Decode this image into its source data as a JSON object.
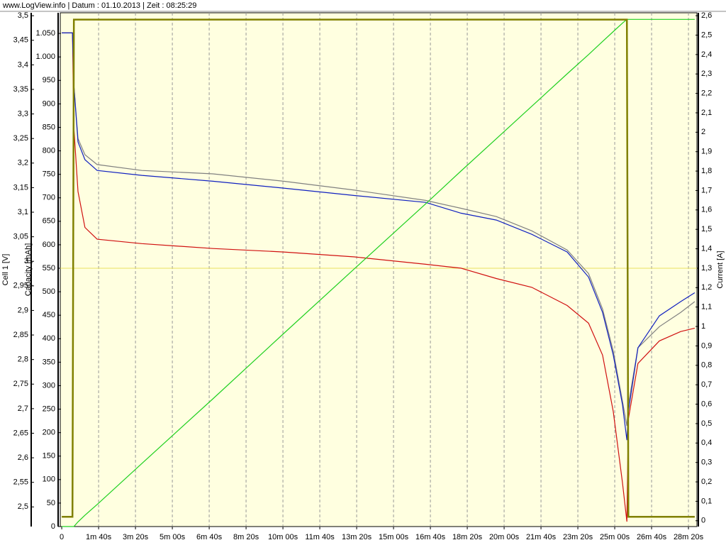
{
  "chart_data": {
    "type": "line",
    "title": "www.LogView.info   |   Datum : 01.10.2013   |   Zeit : 08:25:29",
    "ylabel": "Cell 1 [V]",
    "y3label": "Capacity [mAh]",
    "y2label": "Current [A]",
    "x": [
      0,
      29,
      33,
      44,
      63,
      96,
      217,
      410,
      602,
      794,
      987,
      1083,
      1179,
      1275,
      1371,
      1429,
      1467,
      1496,
      1521,
      1533,
      1537,
      1563,
      1621,
      1679,
      1717
    ],
    "series": [
      {
        "name": "Cell 1 [V]",
        "color": "#d01010",
        "axis": "y",
        "values": [
          3.465,
          3.465,
          3.272,
          3.142,
          3.069,
          3.045,
          3.036,
          3.026,
          3.019,
          3.009,
          2.994,
          2.986,
          2.965,
          2.947,
          2.91,
          2.874,
          2.809,
          2.694,
          2.549,
          2.47,
          2.679,
          2.792,
          2.838,
          2.857,
          2.864
        ]
      },
      {
        "color": "#808080",
        "axis": "y",
        "values": [
          3.465,
          3.465,
          3.358,
          3.25,
          3.217,
          3.197,
          3.185,
          3.178,
          3.163,
          3.145,
          3.124,
          3.108,
          3.091,
          3.062,
          3.023,
          2.975,
          2.903,
          2.817,
          2.715,
          2.665,
          2.708,
          2.824,
          2.867,
          2.896,
          2.918
        ]
      },
      {
        "color": "#1020c0",
        "axis": "y",
        "values": [
          3.465,
          3.465,
          3.358,
          3.243,
          3.207,
          3.185,
          3.175,
          3.163,
          3.149,
          3.134,
          3.12,
          3.098,
          3.084,
          3.055,
          3.019,
          2.968,
          2.896,
          2.809,
          2.708,
          2.636,
          2.694,
          2.824,
          2.889,
          2.918,
          2.936
        ]
      },
      {
        "name": "Capacity [mAh]",
        "color": "#20d020",
        "axis": "y3",
        "values": [
          0,
          0,
          0,
          10,
          24,
          47,
          134,
          272,
          411,
          549,
          687,
          757,
          826,
          895,
          964,
          1005,
          1033,
          1054,
          1072,
          1080,
          1080,
          1080,
          1080,
          1080,
          1080
        ]
      },
      {
        "name": "Current [A]",
        "color": "#808000",
        "axis": "y2",
        "values": [
          0.02,
          0.02,
          2.58,
          2.58,
          2.58,
          2.58,
          2.58,
          2.58,
          2.58,
          2.58,
          2.58,
          2.58,
          2.58,
          2.58,
          2.58,
          2.58,
          2.58,
          2.58,
          2.58,
          2.58,
          0.02,
          0.02,
          0.02,
          0.02,
          0.02
        ]
      }
    ],
    "reference_line": {
      "value": 1.3,
      "axis": "y2",
      "color": "#e8e060"
    },
    "xlim": [
      -4,
      1723
    ],
    "xticks": [
      0,
      {
        "value": 100,
        "label": "1m 40s"
      },
      {
        "value": 200,
        "label": "3m 20s"
      },
      {
        "value": 300,
        "label": "5m 00s"
      },
      {
        "value": 400,
        "label": "6m 40s"
      },
      {
        "value": 500,
        "label": "8m 20s"
      },
      {
        "value": 600,
        "label": "10m 00s"
      },
      {
        "value": 700,
        "label": "11m 40s"
      },
      {
        "value": 800,
        "label": "13m 20s"
      },
      {
        "value": 900,
        "label": "15m 00s"
      },
      {
        "value": 1000,
        "label": "16m 40s"
      },
      {
        "value": 1100,
        "label": "18m 20s"
      },
      {
        "value": 1200,
        "label": "20m 00s"
      },
      {
        "value": 1300,
        "label": "21m 40s"
      },
      {
        "value": 1400,
        "label": "23m 20s"
      },
      {
        "value": 1500,
        "label": "25m 00s"
      },
      {
        "value": 1600,
        "label": "26m 40s"
      },
      {
        "value": 1700,
        "label": "28m 20s"
      }
    ],
    "ylim": [
      2.46,
      3.506
    ],
    "yticks": [
      {
        "value": 2.5,
        "label": "2,5"
      },
      {
        "value": 2.55,
        "label": "2,55"
      },
      {
        "value": 2.6,
        "label": "2,6"
      },
      {
        "value": 2.65,
        "label": "2,65"
      },
      {
        "value": 2.7,
        "label": "2,7"
      },
      {
        "value": 2.75,
        "label": "2,75"
      },
      {
        "value": 2.8,
        "label": "2,8"
      },
      {
        "value": 2.85,
        "label": "2,85"
      },
      {
        "value": 2.9,
        "label": "2,9"
      },
      {
        "value": 2.95,
        "label": "2,95"
      },
      3,
      {
        "value": 3.05,
        "label": "3,05"
      },
      {
        "value": 3.1,
        "label": "3,1"
      },
      {
        "value": 3.15,
        "label": "3,15"
      },
      {
        "value": 3.2,
        "label": "3,2"
      },
      {
        "value": 3.25,
        "label": "3,25"
      },
      {
        "value": 3.3,
        "label": "3,3"
      },
      {
        "value": 3.35,
        "label": "3,35"
      },
      {
        "value": 3.4,
        "label": "3,4"
      },
      {
        "value": 3.45,
        "label": "3,45"
      },
      {
        "value": 3.5,
        "label": "3,5"
      }
    ],
    "y3lim": [
      0,
      1094
    ],
    "y3ticks": [
      0,
      50,
      100,
      150,
      200,
      250,
      300,
      350,
      400,
      450,
      500,
      550,
      600,
      650,
      700,
      750,
      800,
      850,
      900,
      950,
      {
        "value": 1000,
        "label": "1.000"
      },
      {
        "value": 1050,
        "label": "1.050"
      }
    ],
    "y2lim": [
      -0.03,
      2.615
    ],
    "y2ticks": [
      0,
      {
        "value": 0.1,
        "label": "0,1"
      },
      {
        "value": 0.2,
        "label": "0,2"
      },
      {
        "value": 0.3,
        "label": "0,3"
      },
      {
        "value": 0.4,
        "label": "0,4"
      },
      {
        "value": 0.5,
        "label": "0,5"
      },
      {
        "value": 0.6,
        "label": "0,6"
      },
      {
        "value": 0.7,
        "label": "0,7"
      },
      {
        "value": 0.8,
        "label": "0,8"
      },
      {
        "value": 0.9,
        "label": "0,9"
      },
      1,
      {
        "value": 1.1,
        "label": "1,1"
      },
      {
        "value": 1.2,
        "label": "1,2"
      },
      {
        "value": 1.3,
        "label": "1,3"
      },
      {
        "value": 1.4,
        "label": "1,4"
      },
      {
        "value": 1.5,
        "label": "1,5"
      },
      {
        "value": 1.6,
        "label": "1,6"
      },
      {
        "value": 1.7,
        "label": "1,7"
      },
      {
        "value": 1.8,
        "label": "1,8"
      },
      {
        "value": 1.9,
        "label": "1,9"
      },
      2,
      {
        "value": 2.1,
        "label": "2,1"
      },
      {
        "value": 2.2,
        "label": "2,2"
      },
      {
        "value": 2.3,
        "label": "2,3"
      },
      {
        "value": 2.4,
        "label": "2,4"
      },
      {
        "value": 2.5,
        "label": "2,5"
      },
      {
        "value": 2.6,
        "label": "2,6"
      }
    ],
    "grid": true
  }
}
